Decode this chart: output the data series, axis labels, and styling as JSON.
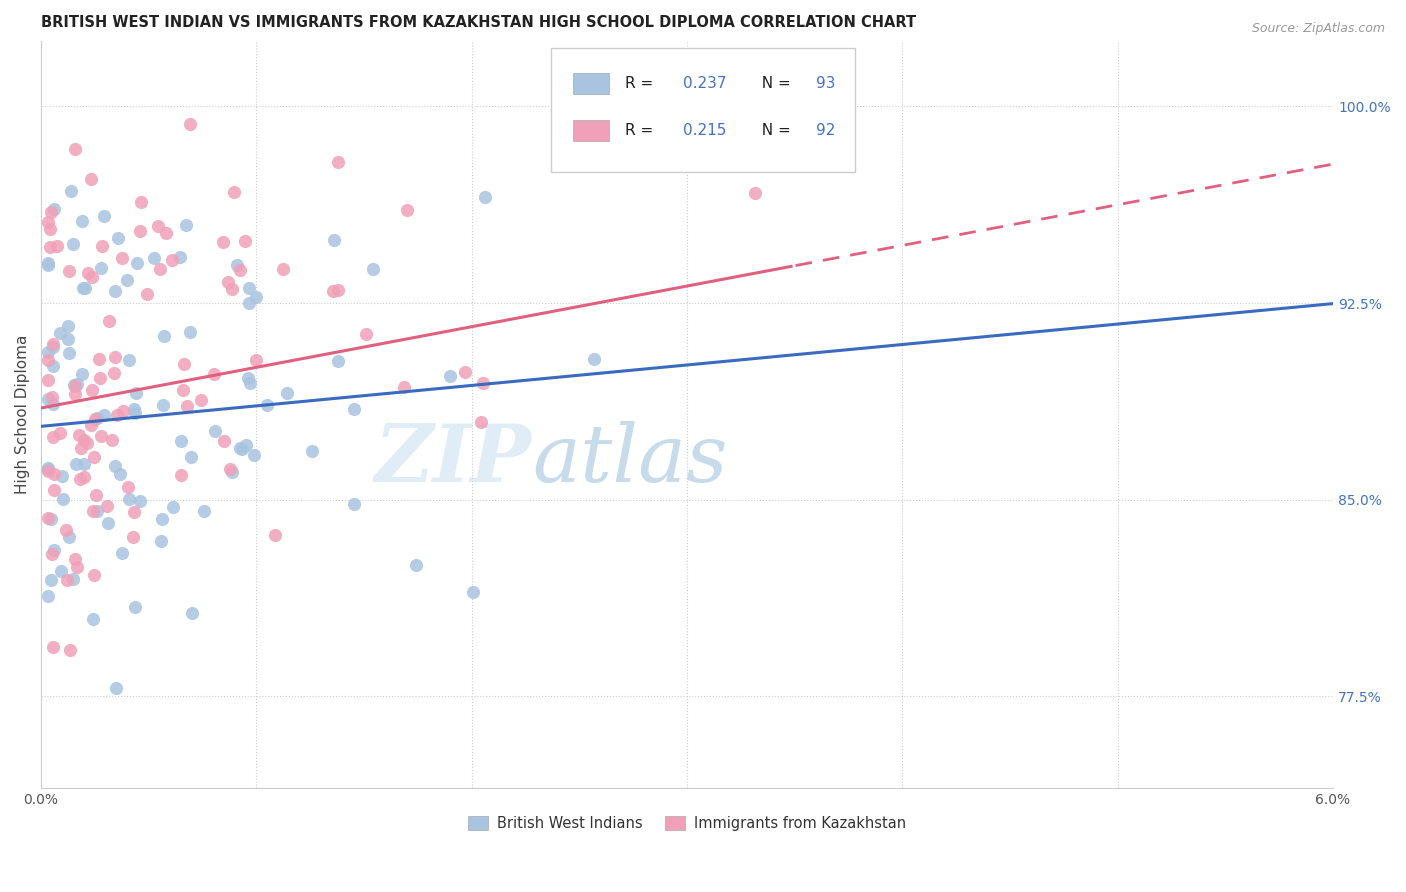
{
  "title": "BRITISH WEST INDIAN VS IMMIGRANTS FROM KAZAKHSTAN HIGH SCHOOL DIPLOMA CORRELATION CHART",
  "source": "Source: ZipAtlas.com",
  "ylabel": "High School Diploma",
  "xmin": 0.0,
  "xmax": 6.0,
  "ymin": 74.0,
  "ymax": 102.5,
  "right_yticks": [
    77.5,
    85.0,
    92.5,
    100.0
  ],
  "right_ytick_labels": [
    "77.5%",
    "85.0%",
    "92.5%",
    "100.0%"
  ],
  "blue_R": 0.237,
  "blue_N": 93,
  "pink_R": 0.215,
  "pink_N": 92,
  "blue_color": "#a8c4e0",
  "pink_color": "#f0a0b8",
  "blue_line_color": "#3a6bbf",
  "pink_line_color": "#e06080",
  "legend_label_blue": "British West Indians",
  "legend_label_pink": "Immigrants from Kazakhstan",
  "watermark_zip": "ZIP",
  "watermark_atlas": "atlas",
  "blue_intercept": 87.8,
  "blue_slope": 0.78,
  "pink_intercept": 88.5,
  "pink_slope": 1.55
}
